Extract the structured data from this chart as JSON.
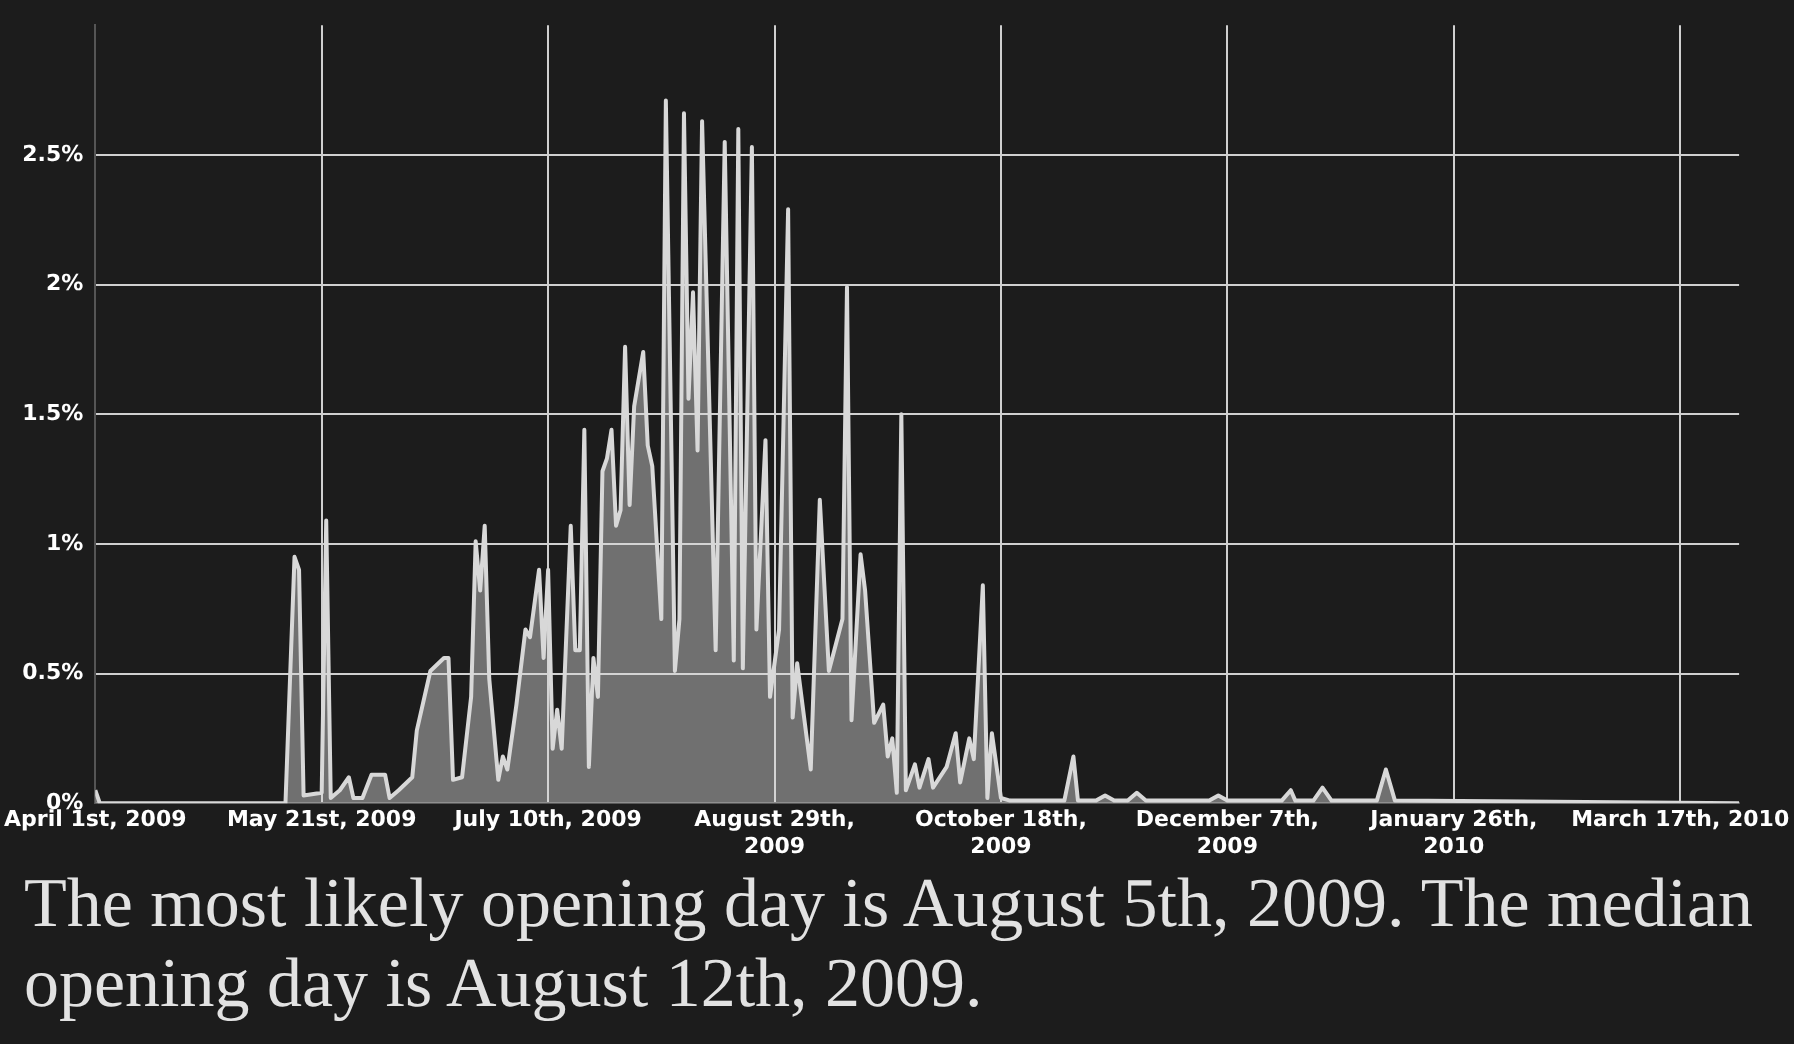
{
  "chart_data": {
    "type": "area",
    "x": [
      "2009-04-01",
      "2009-04-02",
      "2009-05-13",
      "2009-05-15",
      "2009-05-16",
      "2009-05-17",
      "2009-05-21",
      "2009-05-22",
      "2009-05-23",
      "2009-05-25",
      "2009-05-27",
      "2009-05-28",
      "2009-05-30",
      "2009-06-01",
      "2009-06-04",
      "2009-06-05",
      "2009-06-07",
      "2009-06-10",
      "2009-06-11",
      "2009-06-14",
      "2009-06-17",
      "2009-06-18",
      "2009-06-19",
      "2009-06-21",
      "2009-06-23",
      "2009-06-24",
      "2009-06-25",
      "2009-06-26",
      "2009-06-27",
      "2009-06-29",
      "2009-06-30",
      "2009-07-01",
      "2009-07-03",
      "2009-07-05",
      "2009-07-06",
      "2009-07-08",
      "2009-07-09",
      "2009-07-10",
      "2009-07-11",
      "2009-07-12",
      "2009-07-13",
      "2009-07-15",
      "2009-07-16",
      "2009-07-17",
      "2009-07-18",
      "2009-07-19",
      "2009-07-20",
      "2009-07-21",
      "2009-07-22",
      "2009-07-23",
      "2009-07-24",
      "2009-07-25",
      "2009-07-26",
      "2009-07-27",
      "2009-07-28",
      "2009-07-29",
      "2009-07-31",
      "2009-08-01",
      "2009-08-02",
      "2009-08-04",
      "2009-08-05",
      "2009-08-07",
      "2009-08-08",
      "2009-08-09",
      "2009-08-10",
      "2009-08-11",
      "2009-08-12",
      "2009-08-13",
      "2009-08-16",
      "2009-08-18",
      "2009-08-20",
      "2009-08-21",
      "2009-08-22",
      "2009-08-24",
      "2009-08-25",
      "2009-08-27",
      "2009-08-28",
      "2009-08-30",
      "2009-09-01",
      "2009-09-02",
      "2009-09-03",
      "2009-09-06",
      "2009-09-08",
      "2009-09-10",
      "2009-09-13",
      "2009-09-14",
      "2009-09-15",
      "2009-09-17",
      "2009-09-18",
      "2009-09-20",
      "2009-09-22",
      "2009-09-23",
      "2009-09-24",
      "2009-09-25",
      "2009-09-26",
      "2009-09-27",
      "2009-09-29",
      "2009-09-30",
      "2009-10-02",
      "2009-10-03",
      "2009-10-06",
      "2009-10-08",
      "2009-10-09",
      "2009-10-11",
      "2009-10-12",
      "2009-10-14",
      "2009-10-15",
      "2009-10-16",
      "2009-10-18",
      "2009-10-20",
      "2009-11-01",
      "2009-11-03",
      "2009-11-04",
      "2009-11-08",
      "2009-11-10",
      "2009-11-12",
      "2009-11-15",
      "2009-11-17",
      "2009-11-19",
      "2009-12-03",
      "2009-12-05",
      "2009-12-07",
      "2009-12-19",
      "2009-12-21",
      "2009-12-22",
      "2009-12-26",
      "2009-12-28",
      "2009-12-30",
      "2010-01-09",
      "2010-01-11",
      "2010-01-13",
      "2010-03-30"
    ],
    "series": [
      {
        "color": "#d8d8d8",
        "values": [
          0.05,
          0,
          0,
          0.95,
          0.9,
          0.03,
          0.04,
          1.09,
          0.02,
          0.05,
          0.1,
          0.02,
          0.02,
          0.11,
          0.11,
          0.02,
          0.05,
          0.1,
          0.28,
          0.51,
          0.56,
          0.56,
          0.09,
          0.1,
          0.41,
          1.01,
          0.82,
          1.07,
          0.48,
          0.09,
          0.18,
          0.13,
          0.38,
          0.67,
          0.64,
          0.9,
          0.56,
          0.9,
          0.21,
          0.36,
          0.21,
          1.07,
          0.59,
          0.59,
          1.44,
          0.14,
          0.56,
          0.41,
          1.28,
          1.33,
          1.44,
          1.07,
          1.13,
          1.76,
          1.15,
          1.53,
          1.74,
          1.38,
          1.3,
          0.71,
          2.71,
          0.51,
          0.71,
          2.66,
          1.56,
          1.97,
          1.36,
          2.63,
          0.59,
          2.55,
          0.55,
          2.6,
          0.52,
          2.53,
          0.67,
          1.4,
          0.41,
          0.67,
          2.29,
          0.33,
          0.54,
          0.13,
          1.17,
          0.51,
          0.71,
          1.99,
          0.32,
          0.96,
          0.82,
          0.31,
          0.38,
          0.18,
          0.25,
          0.04,
          1.5,
          0.05,
          0.15,
          0.06,
          0.17,
          0.06,
          0.14,
          0.27,
          0.08,
          0.25,
          0.17,
          0.84,
          0.02,
          0.27,
          0.02,
          0.01,
          0.01,
          0.18,
          0.01,
          0.01,
          0.03,
          0.01,
          0.01,
          0.04,
          0.01,
          0.01,
          0.03,
          0.01,
          0.01,
          0.05,
          0.01,
          0.01,
          0.06,
          0.01,
          0.01,
          0.13,
          0.01,
          0
        ]
      }
    ],
    "xlim": [
      "2009-04-01",
      "2010-03-30"
    ],
    "xticks": [
      {
        "value": "2009-04-01",
        "label": "April 1st, 2009"
      },
      {
        "value": "2009-05-21",
        "label": "May 21st, 2009"
      },
      {
        "value": "2009-07-10",
        "label": "July 10th, 2009"
      },
      {
        "value": "2009-08-29",
        "label": "August 29th, 2009"
      },
      {
        "value": "2009-10-18",
        "label": "October 18th, 2009"
      },
      {
        "value": "2009-12-07",
        "label": "December 7th, 2009"
      },
      {
        "value": "2010-01-26",
        "label": "January 26th, 2010"
      },
      {
        "value": "2010-03-17",
        "label": "March 17th, 2010"
      }
    ],
    "ylim": [
      0,
      3
    ],
    "yticks": [
      {
        "value": 0,
        "label": "0%"
      },
      {
        "value": 0.5,
        "label": "0.5%"
      },
      {
        "value": 1,
        "label": "1%"
      },
      {
        "value": 1.5,
        "label": "1.5%"
      },
      {
        "value": 2,
        "label": "2%"
      },
      {
        "value": 2.5,
        "label": "2.5%"
      }
    ],
    "grid": true,
    "legend": false,
    "marker": "none",
    "line_style": "solid",
    "annotations": [
      "The most likely opening day is August 5th, 2009. The median opening day is August 12th, 2009."
    ]
  }
}
